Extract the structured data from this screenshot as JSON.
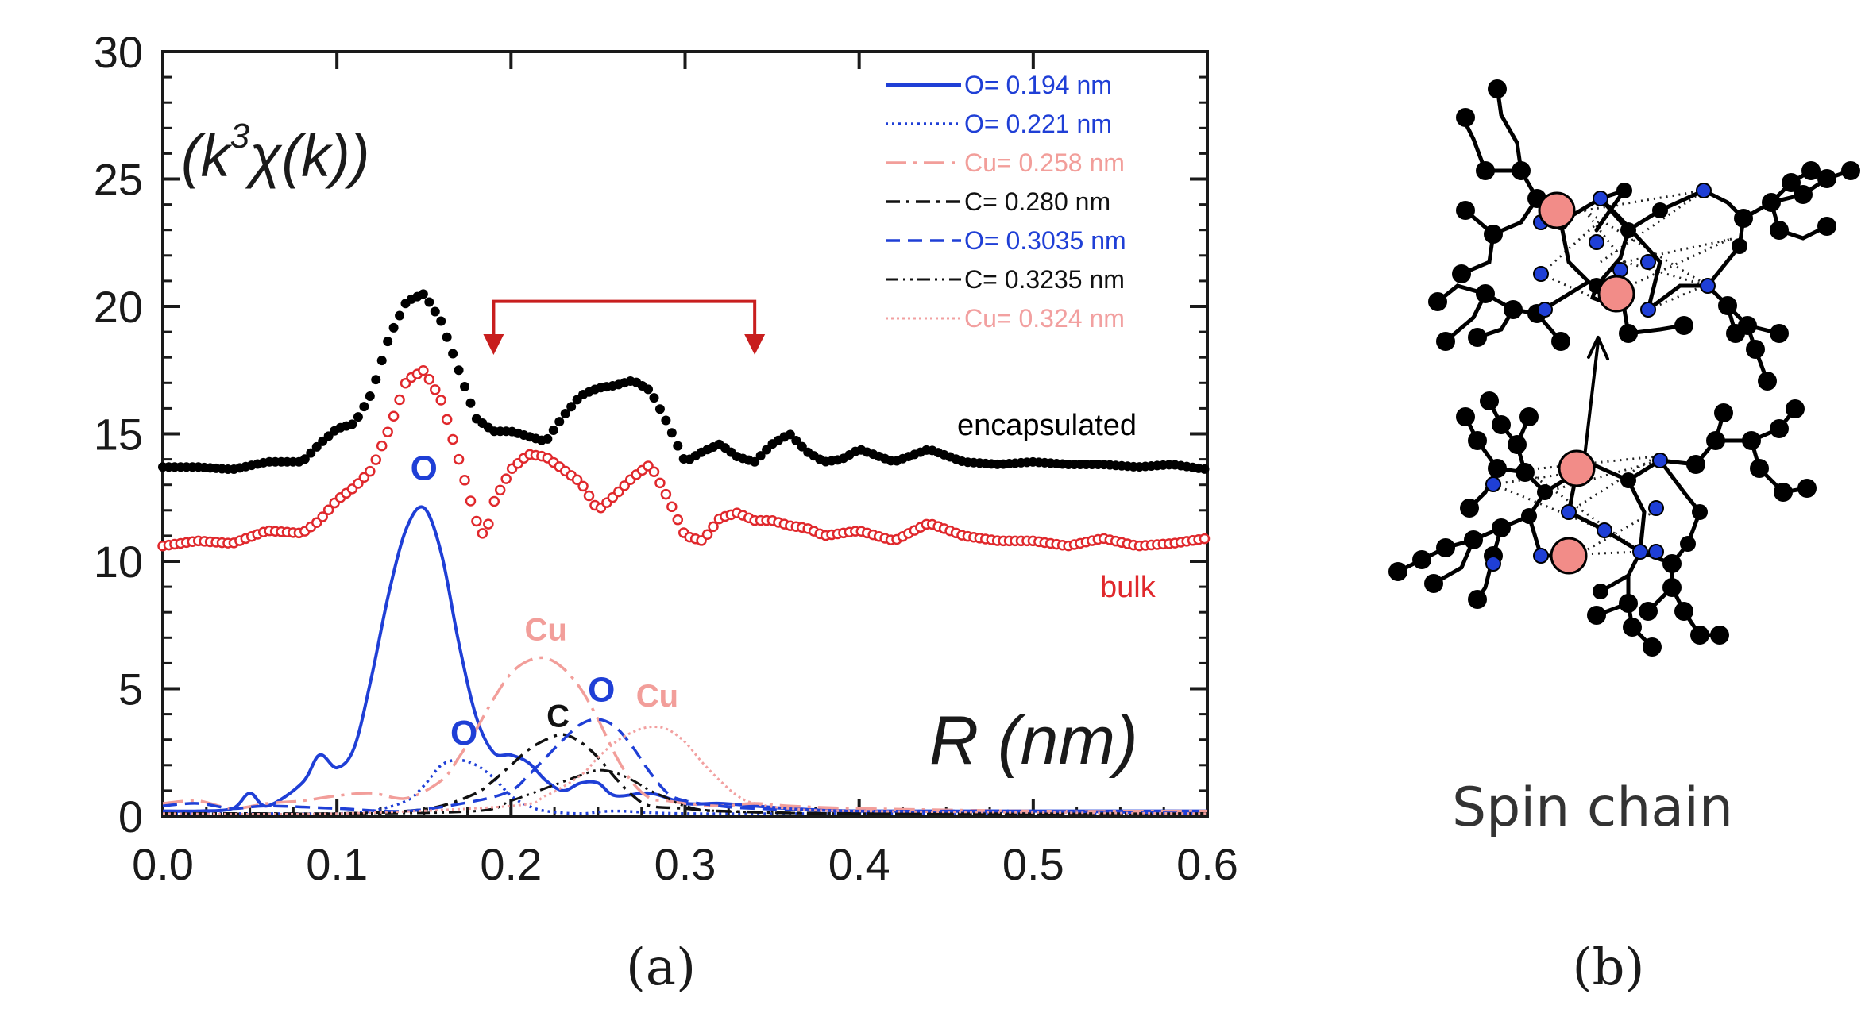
{
  "chart_data": {
    "type": "line",
    "panel_a_label": "(a)",
    "panel_b_label": "(b)",
    "ylabel": "(k³χ(k))",
    "ylabel_parts": {
      "pre": "(k",
      "sup": "3",
      "post": "χ(k))"
    },
    "xlabel": "R (nm)",
    "xlim": [
      0.0,
      0.6
    ],
    "ylim": [
      0,
      30
    ],
    "xticks": [
      "0.0",
      "0.1",
      "0.2",
      "0.3",
      "0.4",
      "0.5",
      "0.6"
    ],
    "yticks": [
      "0",
      "5",
      "10",
      "15",
      "20",
      "25",
      "30"
    ],
    "arrow_range": [
      0.19,
      0.34
    ],
    "series": [
      {
        "name": "encapsulated",
        "style": "dots",
        "color": "#000000",
        "x": [
          0.0,
          0.02,
          0.04,
          0.06,
          0.08,
          0.09,
          0.1,
          0.11,
          0.12,
          0.13,
          0.14,
          0.15,
          0.16,
          0.17,
          0.18,
          0.19,
          0.2,
          0.21,
          0.22,
          0.23,
          0.24,
          0.25,
          0.26,
          0.27,
          0.28,
          0.29,
          0.3,
          0.31,
          0.32,
          0.33,
          0.34,
          0.35,
          0.36,
          0.37,
          0.38,
          0.39,
          0.4,
          0.42,
          0.44,
          0.46,
          0.48,
          0.5,
          0.52,
          0.54,
          0.56,
          0.58,
          0.6
        ],
        "values": [
          13.7,
          13.7,
          13.6,
          13.9,
          13.9,
          14.6,
          15.2,
          15.4,
          16.6,
          18.8,
          20.2,
          20.5,
          19.4,
          17.5,
          15.6,
          15.1,
          15.1,
          14.9,
          14.7,
          15.7,
          16.5,
          16.8,
          16.9,
          17.1,
          16.7,
          15.4,
          13.9,
          14.3,
          14.6,
          14.1,
          13.9,
          14.6,
          15.0,
          14.3,
          13.9,
          14.0,
          14.4,
          13.9,
          14.4,
          13.9,
          13.8,
          13.9,
          13.8,
          13.8,
          13.7,
          13.8,
          13.6
        ]
      },
      {
        "name": "bulk",
        "style": "circles",
        "color": "#e0282c",
        "x": [
          0.0,
          0.02,
          0.04,
          0.06,
          0.08,
          0.09,
          0.1,
          0.11,
          0.12,
          0.13,
          0.14,
          0.15,
          0.16,
          0.17,
          0.18,
          0.185,
          0.19,
          0.2,
          0.21,
          0.22,
          0.23,
          0.24,
          0.25,
          0.26,
          0.27,
          0.28,
          0.29,
          0.3,
          0.31,
          0.32,
          0.33,
          0.34,
          0.35,
          0.36,
          0.37,
          0.38,
          0.4,
          0.42,
          0.44,
          0.46,
          0.48,
          0.5,
          0.52,
          0.54,
          0.56,
          0.58,
          0.6
        ],
        "values": [
          10.6,
          10.8,
          10.7,
          11.2,
          11.1,
          11.6,
          12.4,
          12.9,
          13.6,
          15.2,
          17.1,
          17.5,
          16.3,
          14.0,
          11.6,
          10.9,
          12.3,
          13.6,
          14.2,
          14.1,
          13.6,
          13.1,
          12.0,
          12.6,
          13.3,
          13.8,
          12.5,
          11.0,
          10.8,
          11.7,
          11.9,
          11.6,
          11.6,
          11.4,
          11.3,
          11.0,
          11.2,
          10.8,
          11.5,
          11.0,
          10.8,
          10.8,
          10.6,
          10.9,
          10.6,
          10.7,
          10.9
        ]
      },
      {
        "name": "O= 0.194 nm",
        "style": "solid",
        "color": "#1f3fd6",
        "x": [
          0.0,
          0.02,
          0.04,
          0.05,
          0.06,
          0.08,
          0.09,
          0.1,
          0.11,
          0.12,
          0.13,
          0.14,
          0.15,
          0.16,
          0.17,
          0.18,
          0.19,
          0.2,
          0.21,
          0.22,
          0.23,
          0.24,
          0.25,
          0.26,
          0.28,
          0.3,
          0.32,
          0.34,
          0.36,
          0.4,
          0.5,
          0.6
        ],
        "values": [
          0.2,
          0.2,
          0.3,
          0.9,
          0.4,
          1.3,
          2.4,
          1.9,
          2.7,
          5.5,
          8.8,
          11.3,
          12.1,
          10.3,
          6.8,
          3.9,
          2.5,
          2.4,
          2.1,
          1.4,
          1.0,
          1.3,
          1.3,
          0.8,
          0.9,
          0.5,
          0.5,
          0.4,
          0.3,
          0.2,
          0.2,
          0.2
        ]
      },
      {
        "name": "O= 0.221 nm",
        "style": "dotted",
        "color": "#1f3fd6",
        "x": [
          0.0,
          0.05,
          0.1,
          0.12,
          0.14,
          0.15,
          0.16,
          0.17,
          0.18,
          0.19,
          0.2,
          0.21,
          0.22,
          0.24,
          0.26,
          0.3,
          0.4,
          0.6
        ],
        "values": [
          0.1,
          0.1,
          0.1,
          0.2,
          0.6,
          1.2,
          2.0,
          2.2,
          2.0,
          1.5,
          0.8,
          0.4,
          0.2,
          0.1,
          0.2,
          0.1,
          0.1,
          0.1
        ]
      },
      {
        "name": "Cu= 0.258 nm",
        "style": "dashdot",
        "color": "#f29e9a",
        "x": [
          0.0,
          0.02,
          0.04,
          0.06,
          0.08,
          0.1,
          0.12,
          0.14,
          0.16,
          0.17,
          0.18,
          0.19,
          0.2,
          0.21,
          0.22,
          0.23,
          0.24,
          0.25,
          0.26,
          0.27,
          0.28,
          0.29,
          0.3,
          0.32,
          0.34,
          0.36,
          0.4,
          0.5,
          0.6
        ],
        "values": [
          0.5,
          0.6,
          0.3,
          0.5,
          0.6,
          0.8,
          0.9,
          0.7,
          1.4,
          2.3,
          3.4,
          4.6,
          5.6,
          6.1,
          6.2,
          5.8,
          5.0,
          3.8,
          2.4,
          1.3,
          0.7,
          0.6,
          0.5,
          0.4,
          0.5,
          0.4,
          0.3,
          0.2,
          0.2
        ]
      },
      {
        "name": "C= 0.280 nm",
        "style": "dashdot2",
        "color": "#111111",
        "x": [
          0.0,
          0.05,
          0.1,
          0.14,
          0.16,
          0.18,
          0.19,
          0.2,
          0.21,
          0.22,
          0.23,
          0.24,
          0.25,
          0.26,
          0.27,
          0.28,
          0.3,
          0.32,
          0.4,
          0.6
        ],
        "values": [
          0.1,
          0.1,
          0.1,
          0.2,
          0.4,
          0.9,
          1.4,
          2.0,
          2.6,
          3.0,
          3.2,
          2.9,
          2.3,
          1.5,
          0.8,
          0.4,
          0.3,
          0.2,
          0.1,
          0.1
        ]
      },
      {
        "name": "O= 0.3035 nm",
        "style": "dashed",
        "color": "#1f3fd6",
        "x": [
          0.0,
          0.02,
          0.04,
          0.06,
          0.1,
          0.14,
          0.18,
          0.2,
          0.21,
          0.22,
          0.23,
          0.24,
          0.25,
          0.26,
          0.27,
          0.28,
          0.29,
          0.3,
          0.32,
          0.34,
          0.4,
          0.5,
          0.6
        ],
        "values": [
          0.4,
          0.5,
          0.3,
          0.4,
          0.3,
          0.2,
          0.6,
          1.0,
          1.6,
          2.3,
          3.0,
          3.6,
          3.8,
          3.5,
          2.7,
          1.7,
          0.9,
          0.6,
          0.4,
          0.3,
          0.2,
          0.2,
          0.1
        ]
      },
      {
        "name": "C= 0.3235 nm",
        "style": "dashdotdot",
        "color": "#111111",
        "x": [
          0.0,
          0.1,
          0.18,
          0.2,
          0.22,
          0.24,
          0.25,
          0.26,
          0.27,
          0.28,
          0.29,
          0.3,
          0.32,
          0.4,
          0.6
        ],
        "values": [
          0.1,
          0.1,
          0.2,
          0.6,
          1.1,
          1.6,
          1.8,
          1.7,
          1.4,
          1.0,
          0.7,
          0.4,
          0.2,
          0.1,
          0.1
        ]
      },
      {
        "name": "Cu= 0.324 nm",
        "style": "fine-dotted",
        "color": "#f2a0a0",
        "x": [
          0.0,
          0.1,
          0.2,
          0.22,
          0.24,
          0.25,
          0.26,
          0.27,
          0.28,
          0.29,
          0.3,
          0.31,
          0.32,
          0.33,
          0.34,
          0.36,
          0.4,
          0.6
        ],
        "values": [
          0.1,
          0.1,
          0.4,
          0.8,
          1.6,
          2.3,
          2.9,
          3.3,
          3.5,
          3.4,
          2.9,
          2.1,
          1.4,
          0.8,
          0.5,
          0.3,
          0.2,
          0.1
        ]
      }
    ],
    "annotations": [
      {
        "text": "encapsulated",
        "color": "#000000"
      },
      {
        "text": "bulk",
        "color": "#e0282c"
      },
      {
        "text": "O",
        "color": "#1f3fd6",
        "x": 0.15,
        "y": 13.2
      },
      {
        "text": "O",
        "color": "#1f3fd6",
        "x": 0.173,
        "y": 2.8
      },
      {
        "text": "Cu",
        "color": "#f29e9a",
        "x": 0.22,
        "y": 6.9
      },
      {
        "text": "C",
        "color": "#111111",
        "x": 0.227,
        "y": 3.5
      },
      {
        "text": "O",
        "color": "#1f3fd6",
        "x": 0.252,
        "y": 4.5
      },
      {
        "text": "Cu",
        "color": "#f29e9a",
        "x": 0.284,
        "y": 4.3
      }
    ]
  },
  "diagram": {
    "caption": "Spin chain",
    "colors": {
      "cu": "#f28c88",
      "o": "#1f3fd6",
      "c": "#000000"
    }
  }
}
